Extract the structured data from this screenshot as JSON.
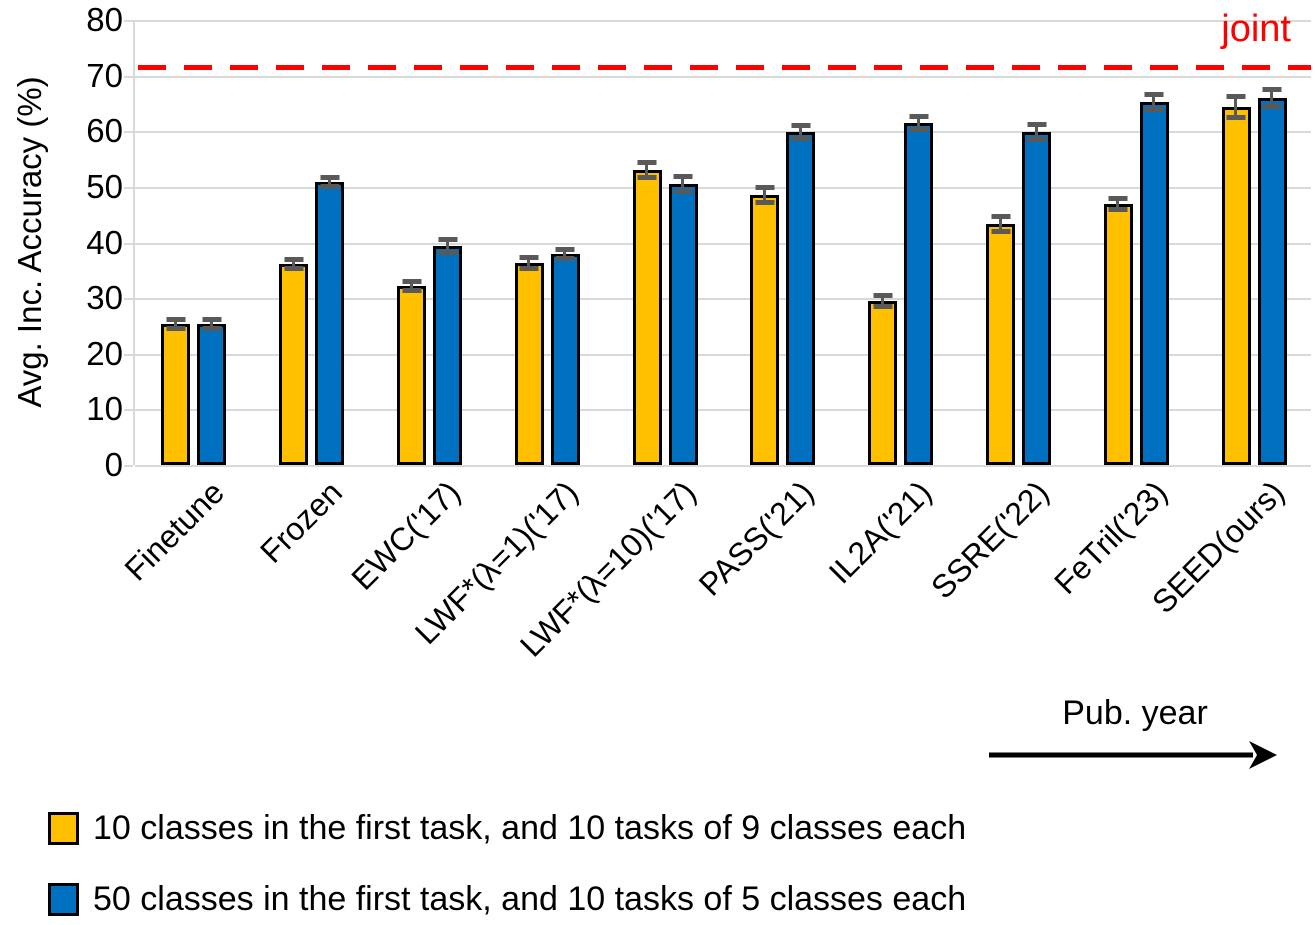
{
  "figure": {
    "pub_year_label": "Pub. year"
  },
  "axes": {
    "y_title": "Avg. Inc. Accuracy (%)",
    "y_ticks": [
      "0",
      "10",
      "20",
      "30",
      "40",
      "50",
      "60",
      "70",
      "80"
    ]
  },
  "legend": {
    "items": [
      {
        "label": "10 classes in the first task, and 10 tasks of 9 classes each",
        "color": "#FFC000"
      },
      {
        "label": "50 classes in the first task, and 10 tasks of 5 classes each",
        "color": "#0070C0"
      }
    ]
  },
  "chart_data": {
    "type": "bar",
    "title": "",
    "xlabel": "Pub. year",
    "ylabel": "Avg. Inc. Accuracy (%)",
    "ylim": [
      0,
      80
    ],
    "ytick_step": 10,
    "grid": true,
    "legend_position": "bottom-left",
    "categories": [
      "Finetune",
      "Frozen",
      "EWC('17)",
      "LWF*(λ=1)('17)",
      "LWF*(λ=10)('17)",
      "PASS('21)",
      "IL2A('21)",
      "SSRE('22)",
      "FeTril('23)",
      "SEED(ours)"
    ],
    "series": [
      {
        "name": "10 classes in the first task, and 10 tasks of 9 classes each",
        "color": "#FFC000",
        "values": [
          25.4,
          36.1,
          32.2,
          36.3,
          53.0,
          48.5,
          29.4,
          43.4,
          47.0,
          64.3
        ],
        "errors": [
          0.5,
          0.5,
          0.5,
          0.8,
          1.1,
          1.1,
          0.8,
          1.1,
          0.7,
          1.6
        ]
      },
      {
        "name": "50 classes in the first task, and 10 tasks of 5 classes each",
        "color": "#0070C0",
        "values": [
          25.3,
          50.8,
          39.4,
          37.9,
          50.5,
          59.8,
          61.4,
          59.8,
          65.2,
          65.9
        ],
        "errors": [
          0.5,
          0.5,
          0.9,
          0.6,
          1.0,
          0.9,
          0.9,
          1.0,
          1.0,
          1.2
        ]
      }
    ],
    "reference_line": {
      "label": "joint",
      "value": 72,
      "color": "#FF0000",
      "style": "dashed"
    },
    "style": {
      "bar_border_color": "#000000",
      "error_bar_color": "#595959",
      "gridline_color": "#D9D9D9",
      "background": "#FFFFFF"
    }
  }
}
